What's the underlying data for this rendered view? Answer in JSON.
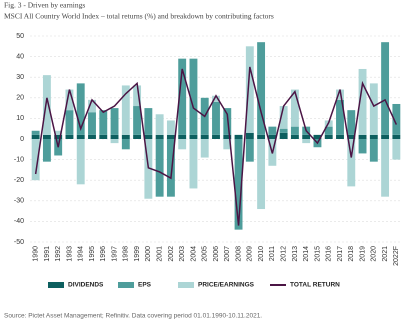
{
  "chart_data": {
    "type": "bar_line",
    "title": "Fig. 3 - Driven by earnings",
    "subtitle": "MSCI All Country World Index – total returns (%) and breakdown by contributing factors",
    "source": "Source: Pictet Asset Management; Refinitiv. Data covering period 01.01.1990-10.11.2021.",
    "categories": [
      "1990",
      "1991",
      "1992",
      "1993",
      "1994",
      "1995",
      "1996",
      "1997",
      "1998",
      "1999",
      "2000",
      "2001",
      "2002",
      "2003",
      "2004",
      "2005",
      "2006",
      "2007",
      "2008",
      "2009",
      "2010",
      "2011",
      "2012",
      "2013",
      "2014",
      "2015",
      "2016",
      "2017",
      "2018",
      "2019",
      "2020",
      "2021",
      "2022F"
    ],
    "series": [
      {
        "name": "DIVIDENDS",
        "color": "#0d5f5f",
        "values": [
          2,
          2,
          2,
          2,
          2,
          2,
          2,
          2,
          2,
          2,
          2,
          2,
          2,
          2,
          2,
          2,
          2,
          2,
          2,
          3,
          2,
          2,
          3,
          2,
          2,
          2,
          2,
          2,
          2,
          2,
          2,
          2,
          2
        ]
      },
      {
        "name": "EPS",
        "color": "#4e9d9b",
        "values": [
          2,
          -11,
          -8,
          12,
          25,
          11,
          12,
          13,
          -5,
          14,
          13,
          -28,
          -28,
          37,
          37,
          18,
          16,
          13,
          -44,
          -11,
          45,
          4,
          2,
          4,
          4,
          -4,
          4,
          17,
          12,
          -7,
          -11,
          45,
          15
        ]
      },
      {
        "name": "PRICE/EARNINGS",
        "color": "#acd5d5",
        "values": [
          -20,
          29,
          2,
          10,
          -22,
          6,
          0,
          -2,
          24,
          10,
          -29,
          10,
          7,
          -5,
          -24,
          -9,
          3,
          -5,
          0,
          42,
          -34,
          -13,
          11,
          18,
          -2,
          0,
          3,
          5,
          -23,
          32,
          25,
          -28,
          -10
        ]
      },
      {
        "name": "TOTAL RETURN",
        "color": "#4b1545",
        "line": true,
        "values": [
          -17,
          20,
          -4,
          24,
          5,
          19,
          13,
          16,
          22,
          27,
          -14,
          -16,
          -19,
          34,
          15,
          11,
          21,
          12,
          -42,
          35,
          13,
          -7,
          16,
          23,
          4,
          -2,
          8,
          24,
          -9,
          27,
          16,
          19,
          7
        ]
      }
    ],
    "ylim": [
      -50,
      50
    ],
    "yticks": [
      -50,
      -40,
      -30,
      -20,
      -10,
      0,
      10,
      20,
      30,
      40,
      50
    ],
    "grid": true
  }
}
